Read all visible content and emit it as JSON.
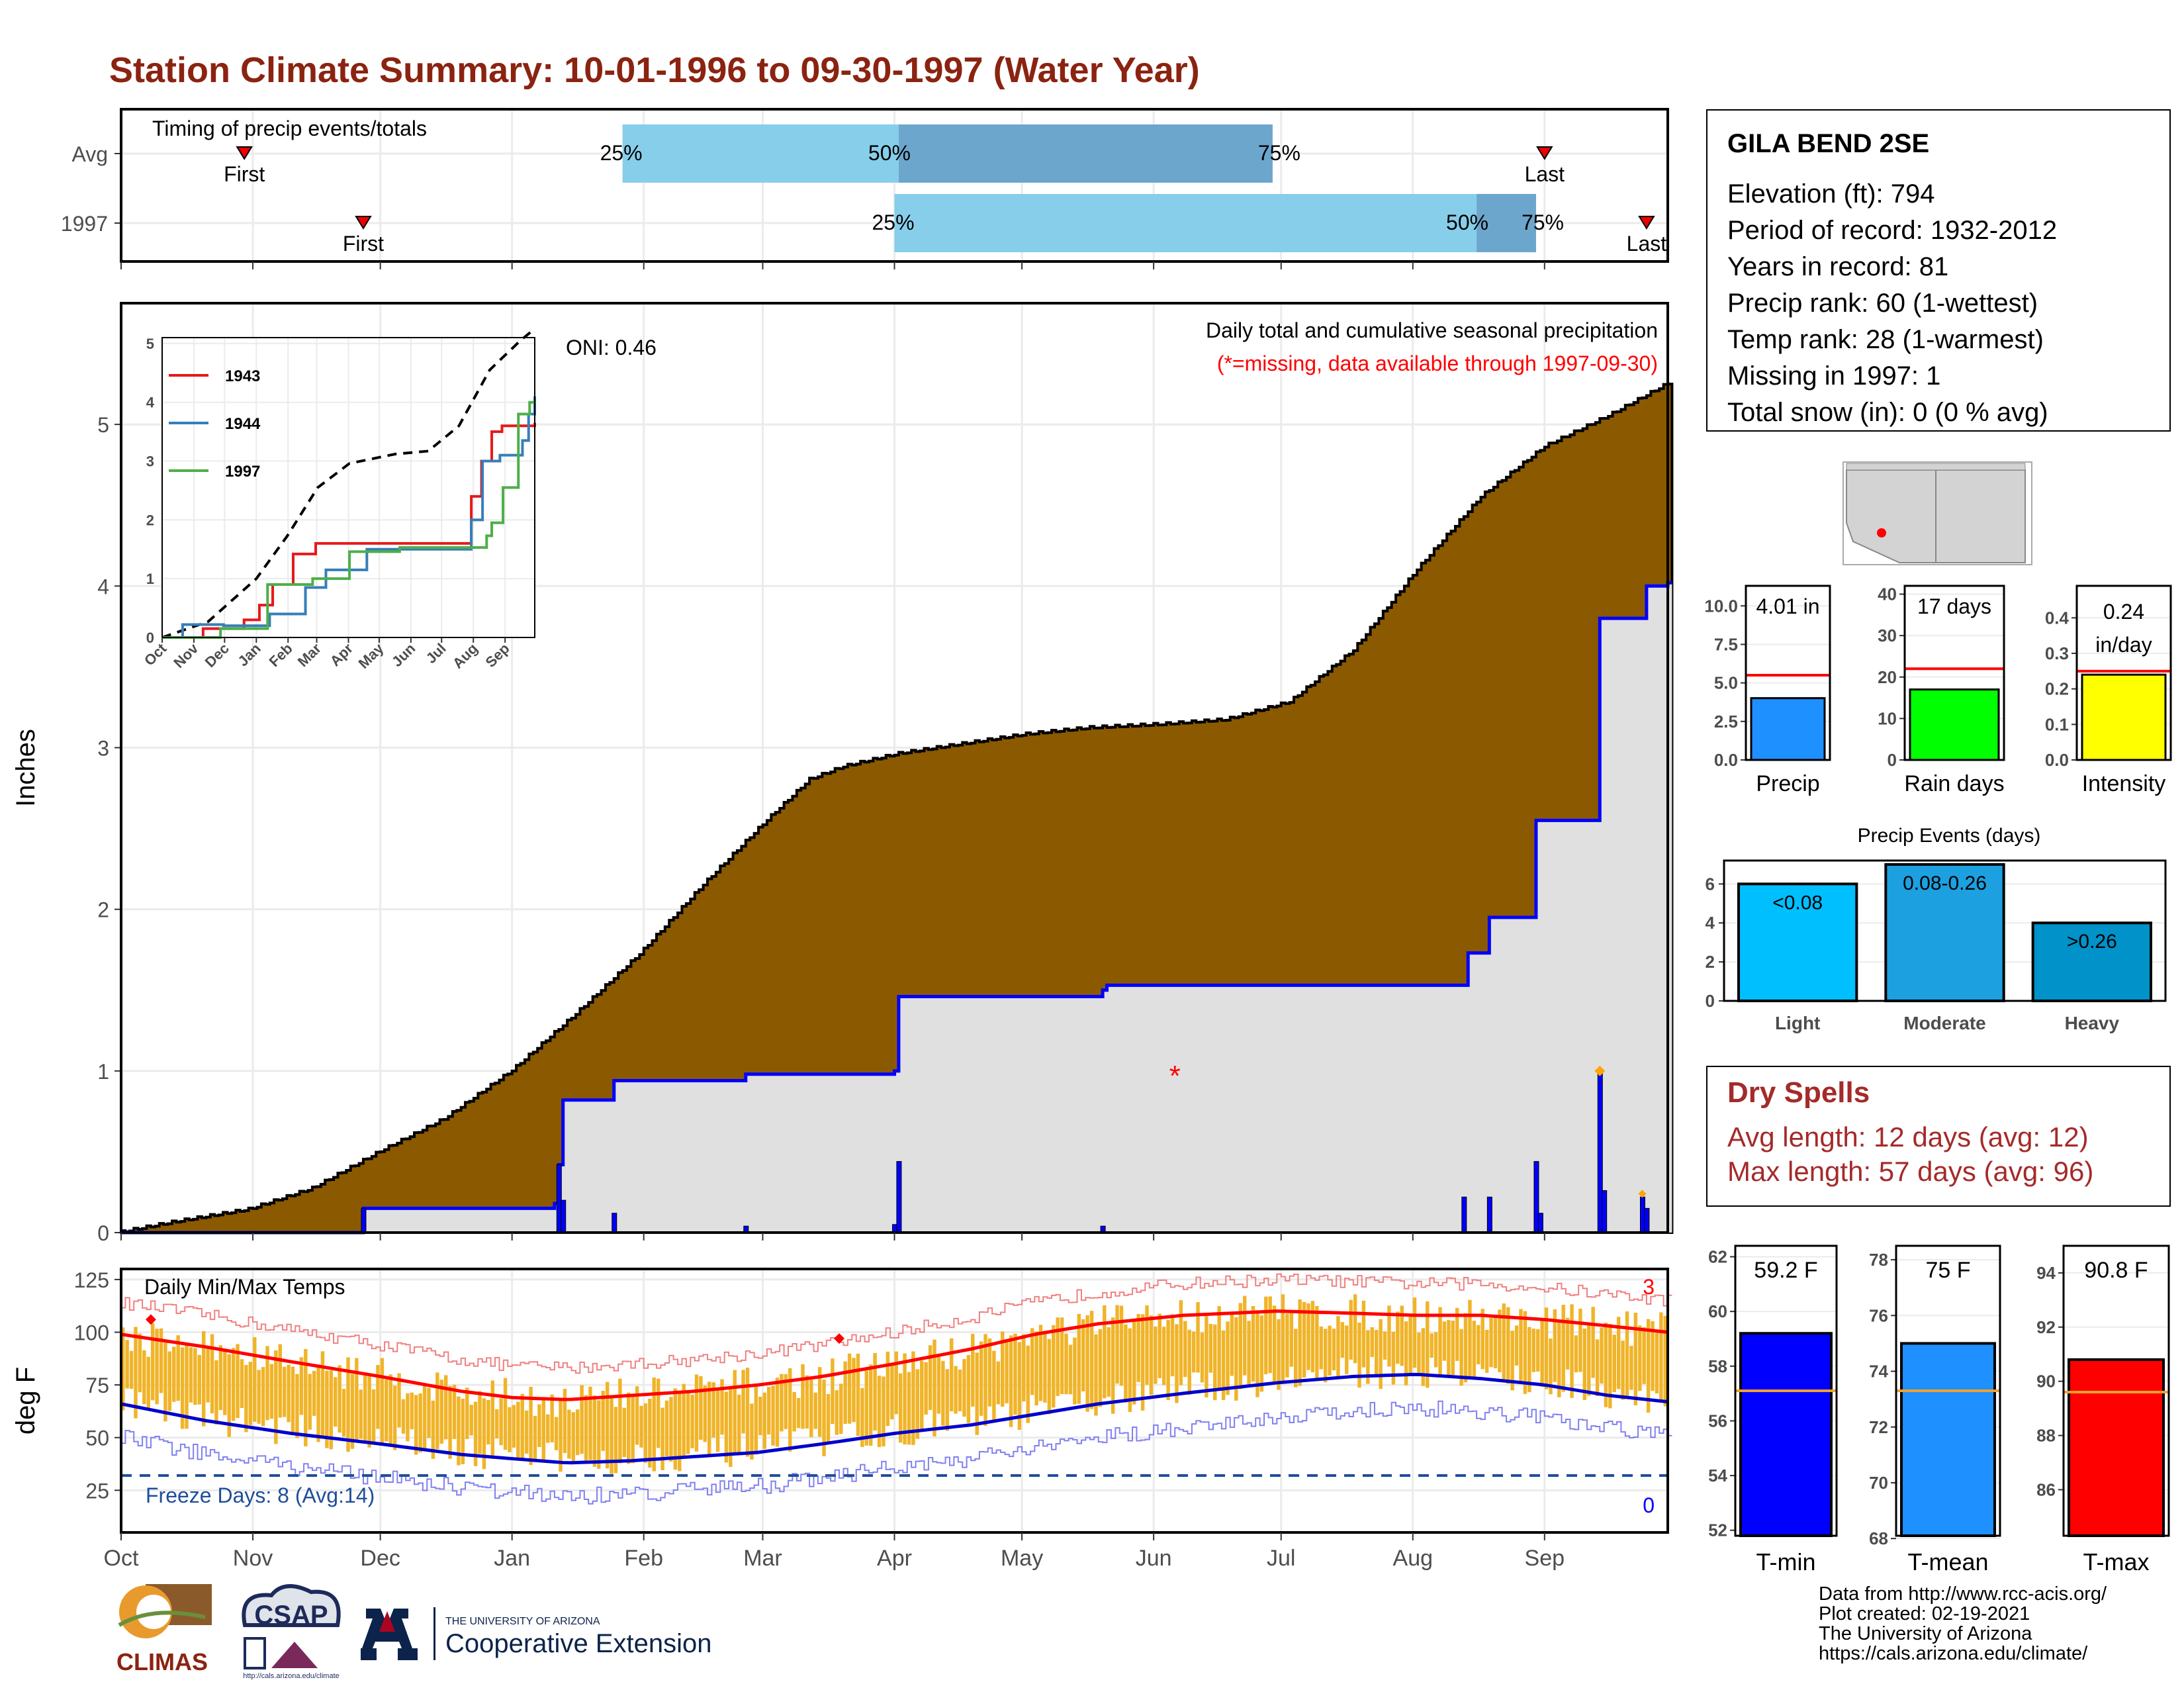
{
  "title": "Station Climate Summary: 10-01-1996 to 09-30-1997 (Water Year)",
  "station": {
    "name": "GILA BEND 2SE",
    "rows": [
      "Elevation (ft): 794",
      "Period of record: 1932-2012",
      "Years in record: 81",
      "Precip rank: 60 (1-wettest)",
      "Temp rank: 28 (1-warmest)",
      "Missing in 1997: 1",
      "Total snow (in): 0 (0 % avg)"
    ]
  },
  "dry_spells": {
    "title": "Dry Spells",
    "avg": "Avg length: 12 days (avg: 12)",
    "max": "Max length: 57 days (avg: 96)"
  },
  "credit": [
    "Data from http://www.rcc-acis.org/",
    "Plot created: 02-19-2021",
    "The University of Arizona",
    "https://cals.arizona.edu/climate/"
  ],
  "logos": {
    "climas": "CLIMAS",
    "csap": "CSAP",
    "csap_url": "http://cals.arizona.edu/climate",
    "ua_small": "THE UNIVERSITY OF ARIZONA",
    "ua_big": "Cooperative Extension"
  },
  "colors": {
    "title": "#8b2311",
    "brown": "#8b5a00",
    "blue": "#0000ff",
    "light_blue": "#87ceeb",
    "mid_blue": "#6ca6cd",
    "gold": "#f0b429",
    "red": "#ff0000",
    "gray_fill": "#e0e0e0"
  },
  "chart_data": [
    {
      "id": "timing",
      "type": "bar",
      "title": "Timing of precip events/totals",
      "rows": [
        "Avg",
        "1997"
      ],
      "month_ticks": [
        "Oct",
        "Nov",
        "Dec",
        "Jan",
        "Feb",
        "Mar",
        "Apr",
        "May",
        "Jun",
        "Jul",
        "Aug",
        "Sep"
      ],
      "series": [
        {
          "name": "Avg",
          "first_doy": 29,
          "last_doy": 335,
          "p25": 118,
          "p50": 183,
          "p75": 271,
          "labels": [
            "First",
            "25%",
            "50%",
            "75%",
            "Last"
          ]
        },
        {
          "name": "1997",
          "first_doy": 57,
          "last_doy": 359,
          "p25": 182,
          "p50": 319,
          "p75": 333,
          "labels": [
            "First",
            "25%",
            "50%",
            "75%",
            "Last"
          ]
        }
      ]
    },
    {
      "id": "precip",
      "type": "area",
      "title": "Daily total and cumulative seasonal precipitation",
      "subtitle": "(*=missing, data available through 1997-09-30)",
      "oni": "ONI: 0.46",
      "ylabel": "Inches",
      "ylim": [
        0,
        5.75
      ],
      "yticks": [
        0,
        1,
        2,
        3,
        4,
        5
      ],
      "avg_cumulative_points": [
        [
          0,
          0
        ],
        [
          12,
          0.06
        ],
        [
          30,
          0.14
        ],
        [
          45,
          0.27
        ],
        [
          61,
          0.5
        ],
        [
          76,
          0.7
        ],
        [
          92,
          1.0
        ],
        [
          107,
          1.35
        ],
        [
          122,
          1.72
        ],
        [
          137,
          2.15
        ],
        [
          152,
          2.55
        ],
        [
          162,
          2.8
        ],
        [
          170,
          2.88
        ],
        [
          183,
          2.96
        ],
        [
          198,
          3.02
        ],
        [
          213,
          3.08
        ],
        [
          228,
          3.12
        ],
        [
          244,
          3.14
        ],
        [
          260,
          3.17
        ],
        [
          275,
          3.28
        ],
        [
          290,
          3.6
        ],
        [
          305,
          4.1
        ],
        [
          320,
          4.55
        ],
        [
          335,
          4.86
        ],
        [
          350,
          5.05
        ],
        [
          364,
          5.25
        ]
      ],
      "cumulative_1997_points": [
        [
          0,
          0
        ],
        [
          56,
          0.0
        ],
        [
          57,
          0.15
        ],
        [
          102,
          0.18
        ],
        [
          103,
          0.42
        ],
        [
          104,
          0.82
        ],
        [
          116,
          0.94
        ],
        [
          147,
          0.98
        ],
        [
          182,
          1.0
        ],
        [
          183,
          1.46
        ],
        [
          231,
          1.5
        ],
        [
          232,
          1.53
        ],
        [
          316,
          1.53
        ],
        [
          317,
          1.73
        ],
        [
          322,
          1.95
        ],
        [
          332,
          1.95
        ],
        [
          333,
          2.55
        ],
        [
          347,
          2.55
        ],
        [
          348,
          3.8
        ],
        [
          358,
          3.8
        ],
        [
          359,
          4.0
        ],
        [
          364,
          4.02
        ]
      ],
      "daily_1997": [
        [
          57,
          0.15
        ],
        [
          103,
          0.42
        ],
        [
          104,
          0.2
        ],
        [
          116,
          0.12
        ],
        [
          147,
          0.04
        ],
        [
          182,
          0.05
        ],
        [
          183,
          0.44
        ],
        [
          231,
          0.04
        ],
        [
          316,
          0.22
        ],
        [
          322,
          0.22
        ],
        [
          333,
          0.44
        ],
        [
          334,
          0.12
        ],
        [
          348,
          1.0
        ],
        [
          349,
          0.26
        ],
        [
          358,
          0.22
        ],
        [
          359,
          0.15
        ]
      ],
      "missing_markers": [
        [
          248,
          1.0
        ]
      ],
      "inset": {
        "type": "line",
        "yticks": [
          0,
          1,
          2,
          3,
          4,
          5
        ],
        "ylim": [
          0,
          5.1
        ],
        "xticks": [
          "Oct",
          "Nov",
          "Dec",
          "Jan",
          "Feb",
          "Mar",
          "Apr",
          "May",
          "Jun",
          "Jul",
          "Aug",
          "Sep"
        ],
        "series": [
          {
            "name": "1943",
            "color": "#e41a1c",
            "points": [
              [
                0,
                0
              ],
              [
                40,
                0.15
              ],
              [
                80,
                0.3
              ],
              [
                95,
                0.55
              ],
              [
                108,
                0.9
              ],
              [
                128,
                1.42
              ],
              [
                150,
                1.6
              ],
              [
                185,
                1.6
              ],
              [
                218,
                1.6
              ],
              [
                258,
                1.6
              ],
              [
                280,
                1.6
              ],
              [
                300,
                1.6
              ],
              [
                302,
                2.4
              ],
              [
                312,
                3.0
              ],
              [
                322,
                3.5
              ],
              [
                332,
                3.6
              ],
              [
                340,
                3.6
              ],
              [
                364,
                3.65
              ]
            ]
          },
          {
            "name": "1944",
            "color": "#377eb8",
            "points": [
              [
                0,
                0
              ],
              [
                20,
                0.22
              ],
              [
                60,
                0.2
              ],
              [
                105,
                0.4
              ],
              [
                140,
                0.85
              ],
              [
                160,
                1.15
              ],
              [
                200,
                1.5
              ],
              [
                250,
                1.5
              ],
              [
                280,
                1.5
              ],
              [
                300,
                1.5
              ],
              [
                302,
                2.0
              ],
              [
                313,
                3.0
              ],
              [
                330,
                3.1
              ],
              [
                340,
                3.1
              ],
              [
                352,
                3.35
              ],
              [
                358,
                3.8
              ],
              [
                364,
                4.1
              ]
            ]
          },
          {
            "name": "1997",
            "color": "#4daf4a",
            "points": [
              [
                0,
                0
              ],
              [
                57,
                0.15
              ],
              [
                103,
                0.9
              ],
              [
                147,
                1.0
              ],
              [
                183,
                1.46
              ],
              [
                232,
                1.53
              ],
              [
                317,
                1.73
              ],
              [
                322,
                1.95
              ],
              [
                333,
                2.55
              ],
              [
                348,
                3.8
              ],
              [
                359,
                4.0
              ],
              [
                364,
                4.02
              ]
            ]
          }
        ],
        "avg_points": [
          [
            0,
            0
          ],
          [
            45,
            0.27
          ],
          [
            92,
            1.0
          ],
          [
            122,
            1.72
          ],
          [
            152,
            2.55
          ],
          [
            183,
            2.96
          ],
          [
            228,
            3.12
          ],
          [
            260,
            3.17
          ],
          [
            290,
            3.6
          ],
          [
            320,
            4.55
          ],
          [
            350,
            5.05
          ],
          [
            364,
            5.25
          ]
        ]
      }
    },
    {
      "id": "temps",
      "type": "line",
      "title": "Daily Min/Max Temps",
      "ylabel": "deg F",
      "ylim": [
        5,
        130
      ],
      "yticks": [
        25,
        50,
        75,
        100,
        125
      ],
      "x_ticks": [
        "Oct",
        "Nov",
        "Dec",
        "Jan",
        "Feb",
        "Mar",
        "Apr",
        "May",
        "Jun",
        "Jul",
        "Aug",
        "Sep"
      ],
      "freeze_line": 32,
      "freeze_label": "Freeze Days: 8 (Avg:14)",
      "count_top": "3",
      "count_bottom": "0",
      "avg_max_points": [
        [
          0,
          99
        ],
        [
          20,
          93
        ],
        [
          40,
          86
        ],
        [
          61,
          79
        ],
        [
          80,
          72
        ],
        [
          92,
          69
        ],
        [
          105,
          68
        ],
        [
          120,
          70
        ],
        [
          135,
          72
        ],
        [
          150,
          75
        ],
        [
          165,
          79
        ],
        [
          182,
          85
        ],
        [
          200,
          92
        ],
        [
          215,
          99
        ],
        [
          230,
          104
        ],
        [
          250,
          108
        ],
        [
          272,
          110
        ],
        [
          290,
          109
        ],
        [
          305,
          108
        ],
        [
          320,
          108
        ],
        [
          335,
          106
        ],
        [
          350,
          103
        ],
        [
          364,
          100
        ]
      ],
      "avg_min_points": [
        [
          0,
          66
        ],
        [
          20,
          58
        ],
        [
          40,
          52
        ],
        [
          61,
          47
        ],
        [
          80,
          42
        ],
        [
          92,
          40
        ],
        [
          105,
          38
        ],
        [
          120,
          39
        ],
        [
          135,
          41
        ],
        [
          150,
          43
        ],
        [
          165,
          47
        ],
        [
          182,
          52
        ],
        [
          200,
          56
        ],
        [
          215,
          61
        ],
        [
          230,
          66
        ],
        [
          250,
          71
        ],
        [
          272,
          76
        ],
        [
          290,
          79
        ],
        [
          305,
          80
        ],
        [
          320,
          78
        ],
        [
          335,
          75
        ],
        [
          350,
          70
        ],
        [
          364,
          67
        ]
      ],
      "record_markers": [
        [
          7,
          106
        ],
        [
          169,
          97
        ]
      ]
    },
    {
      "id": "totals",
      "type": "bar",
      "categories": [
        "Precip",
        "Rain days",
        "Intensity"
      ],
      "values": [
        4.01,
        17,
        0.24
      ],
      "averages": [
        5.5,
        22,
        0.25
      ],
      "labels": [
        "4.01 in",
        "17 days",
        "0.24 in/day"
      ],
      "yticks": [
        [
          "0.0",
          "2.5",
          "5.0",
          "7.5",
          "10.0"
        ],
        [
          "0",
          "10",
          "20",
          "30",
          "40"
        ],
        [
          "0.0",
          "0.1",
          "0.2",
          "0.3",
          "0.4"
        ]
      ],
      "ylims": [
        [
          0,
          11.3
        ],
        [
          0,
          42
        ],
        [
          0,
          0.49
        ]
      ],
      "colors": [
        "#1e90ff",
        "#00ff00",
        "#ffff00"
      ]
    },
    {
      "id": "events",
      "type": "bar",
      "title": "Precip Events (days)",
      "categories": [
        "Light",
        "Moderate",
        "Heavy"
      ],
      "values": [
        6,
        7,
        4
      ],
      "bar_labels": [
        "<0.08",
        "0.08-0.26",
        ">0.26"
      ],
      "yticks": [
        0,
        2,
        4,
        6
      ],
      "ylim": [
        0,
        7.2
      ],
      "colors": [
        "#00bfff",
        "#1ca0e0",
        "#0092c8"
      ]
    },
    {
      "id": "temp_summary",
      "type": "bar",
      "categories": [
        "T-min",
        "T-mean",
        "T-max"
      ],
      "values": [
        59.2,
        75,
        90.8
      ],
      "averages": [
        57.1,
        73.3,
        89.6
      ],
      "labels": [
        "59.2 F",
        "75 F",
        "90.8 F"
      ],
      "yticks": [
        [
          "52",
          "54",
          "56",
          "58",
          "60",
          "62"
        ],
        [
          "68",
          "70",
          "72",
          "74",
          "76",
          "78"
        ],
        [
          "86",
          "88",
          "90",
          "92",
          "94"
        ]
      ],
      "ylims": [
        [
          51.8,
          62.4
        ],
        [
          68.1,
          78.5
        ],
        [
          84.3,
          95.0
        ]
      ],
      "colors": [
        "#0000ff",
        "#1e90ff",
        "#ff0000"
      ]
    }
  ]
}
